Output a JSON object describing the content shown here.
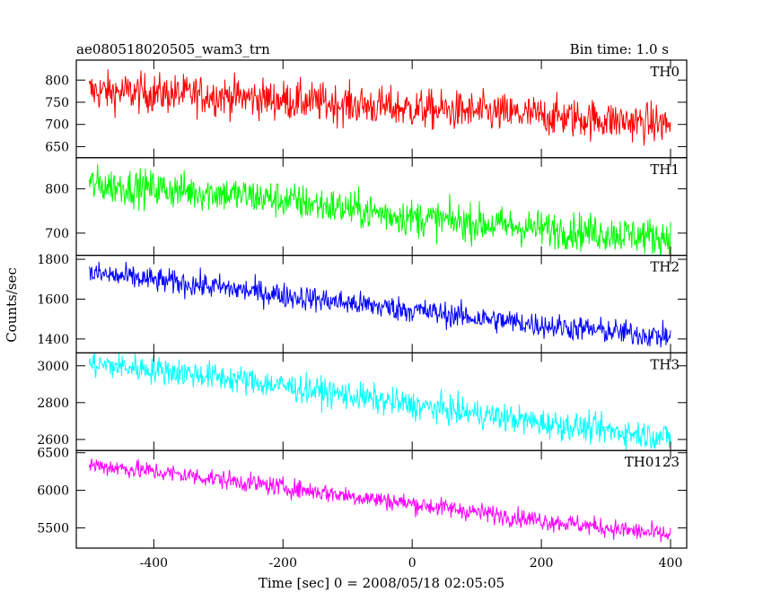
{
  "chart_data": {
    "type": "line",
    "title": "ae080518020505_wam3_trn",
    "subtitle": "Bin time: 1.0 s",
    "xlabel": "Time [sec] 0 = 2008/05/18 02:05:05",
    "ylabel": "Counts/sec",
    "xlim": [
      -520,
      425
    ],
    "xticks": [
      -400,
      -200,
      0,
      200,
      400
    ],
    "grid": false,
    "legend": "none",
    "panels": [
      {
        "name": "TH0",
        "color": "#ff0000",
        "ylim": [
          625,
          845
        ],
        "yticks": [
          650,
          700,
          750,
          800
        ],
        "x": [
          -500,
          -400,
          -300,
          -200,
          -100,
          0,
          100,
          200,
          300,
          400
        ],
        "y": [
          775,
          770,
          765,
          755,
          745,
          735,
          728,
          720,
          710,
          700
        ],
        "noise": 32
      },
      {
        "name": "TH1",
        "color": "#00ff00",
        "ylim": [
          650,
          870
        ],
        "yticks": [
          700,
          800
        ],
        "x": [
          -500,
          -400,
          -300,
          -200,
          -100,
          0,
          100,
          200,
          300,
          400
        ],
        "y": [
          810,
          800,
          790,
          775,
          755,
          735,
          722,
          710,
          700,
          690
        ],
        "noise": 30
      },
      {
        "name": "TH2",
        "color": "#0000ff",
        "ylim": [
          1330,
          1820
        ],
        "yticks": [
          1400,
          1600,
          1800
        ],
        "x": [
          -500,
          -400,
          -300,
          -200,
          -100,
          0,
          100,
          200,
          300,
          400
        ],
        "y": [
          1730,
          1695,
          1660,
          1620,
          1580,
          1545,
          1505,
          1470,
          1440,
          1410
        ],
        "noise": 45
      },
      {
        "name": "TH3",
        "color": "#00ffff",
        "ylim": [
          2540,
          3070
        ],
        "yticks": [
          2600,
          2800,
          3000
        ],
        "x": [
          -500,
          -400,
          -300,
          -200,
          -100,
          0,
          100,
          200,
          300,
          400
        ],
        "y": [
          3010,
          2980,
          2940,
          2890,
          2840,
          2785,
          2740,
          2690,
          2650,
          2610
        ],
        "noise": 55
      },
      {
        "name": "TH0123",
        "color": "#ff00ff",
        "ylim": [
          5230,
          6530
        ],
        "yticks": [
          5500,
          6000,
          6500
        ],
        "x": [
          -500,
          -400,
          -300,
          -200,
          -100,
          0,
          100,
          200,
          300,
          400
        ],
        "y": [
          6340,
          6250,
          6150,
          6040,
          5930,
          5820,
          5710,
          5600,
          5500,
          5400
        ],
        "noise": 90
      }
    ]
  }
}
